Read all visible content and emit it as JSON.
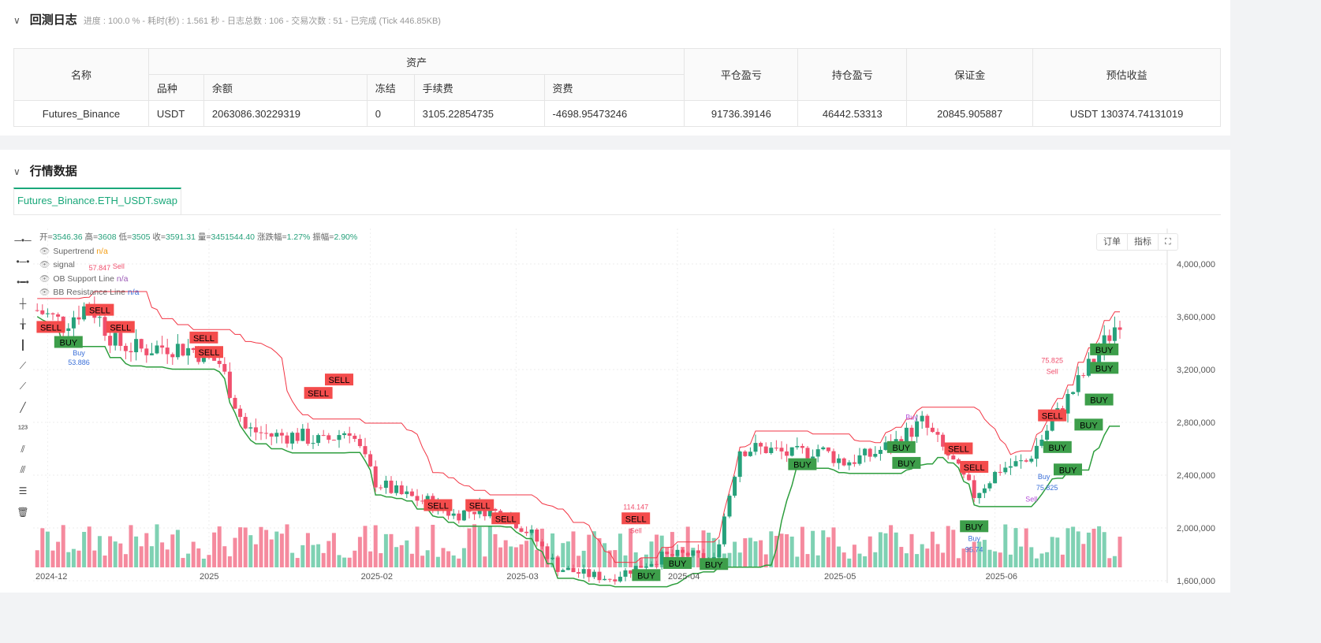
{
  "backtest_log": {
    "title": "回测日志",
    "status": "进度 : 100.0 % - 耗时(秒) : 1.561 秒 - 日志总数 : 106 - 交易次数 : 51 - 已完成 (Tick 446.85KB)"
  },
  "assets_table": {
    "headers": {
      "name": "名称",
      "assets": "资产",
      "close_pnl": "平仓盈亏",
      "position_pnl": "持仓盈亏",
      "margin": "保证金",
      "est_profit": "预估收益"
    },
    "sub_headers": [
      "品种",
      "余额",
      "冻结",
      "手续费",
      "资费"
    ],
    "row": {
      "name": "Futures_Binance",
      "currency": "USDT",
      "balance": "2063086.30229319",
      "frozen": "0",
      "fee": "3105.22854735",
      "funding": "-4698.95473246",
      "close_pnl": "91736.39146",
      "position_pnl": "46442.53313",
      "margin": "20845.905887",
      "est_profit": "USDT 130374.74131019"
    }
  },
  "market": {
    "title": "行情数据",
    "tab": "Futures_Binance.ETH_USDT.swap",
    "ohlc": {
      "open_label": "开=",
      "open": "3546.36",
      "high_label": "高=",
      "high": "3608",
      "low_label": "低=",
      "low": "3505",
      "close_label": "收=",
      "close": "3591.31",
      "vol_label": "量=",
      "vol": "3451544.40",
      "chg_label": "涨跌幅=",
      "chg": "1.27%",
      "amp_label": "振幅=",
      "amp": "2.90%"
    },
    "indicators": [
      {
        "name": "Supertrend",
        "value": "n/a",
        "color": "#f39c12"
      },
      {
        "name": "signal",
        "value": "",
        "color": "#999"
      },
      {
        "name": "OB Support Line",
        "value": "n/a",
        "color": "#9b59b6"
      },
      {
        "name": "BB Resistance Line",
        "value": "n/a",
        "color": "#3a6fd8"
      }
    ],
    "buttons": {
      "orders": "订单",
      "indicators": "指标"
    }
  },
  "chart_data": {
    "type": "candlestick",
    "y_ticks": [
      "4,000,000",
      "3,600,000",
      "3,200,000",
      "2,800,000",
      "2,400,000",
      "2,000,000",
      "1,600,000"
    ],
    "y_tick_values": [
      4000,
      3600,
      3200,
      2800,
      2400,
      2000,
      1600
    ],
    "x_ticks": [
      "2024-12",
      "2025",
      "2025-02",
      "2025-03",
      "2025-04",
      "2025-05",
      "2025-06"
    ],
    "close_path": [
      [
        "2024-11-29",
        3650
      ],
      [
        "2024-12-04",
        3550
      ],
      [
        "2024-12-09",
        3700
      ],
      [
        "2024-12-14",
        3400
      ],
      [
        "2024-12-19",
        3350
      ],
      [
        "2024-12-24",
        3380
      ],
      [
        "2024-12-29",
        3350
      ],
      [
        "2025-01-03",
        3250
      ],
      [
        "2025-01-08",
        2750
      ],
      [
        "2025-01-13",
        2700
      ],
      [
        "2025-01-18",
        2700
      ],
      [
        "2025-01-23",
        2650
      ],
      [
        "2025-01-28",
        2750
      ],
      [
        "2025-02-02",
        2350
      ],
      [
        "2025-02-07",
        2250
      ],
      [
        "2025-02-12",
        2200
      ],
      [
        "2025-02-17",
        2100
      ],
      [
        "2025-02-22",
        2150
      ],
      [
        "2025-02-27",
        2100
      ],
      [
        "2025-03-04",
        1950
      ],
      [
        "2025-03-09",
        1700
      ],
      [
        "2025-03-14",
        1650
      ],
      [
        "2025-03-19",
        1620
      ],
      [
        "2025-03-24",
        1700
      ],
      [
        "2025-03-29",
        1780
      ],
      [
        "2025-04-03",
        1800
      ],
      [
        "2025-04-08",
        1750
      ],
      [
        "2025-04-13",
        2600
      ],
      [
        "2025-04-18",
        2600
      ],
      [
        "2025-04-23",
        2550
      ],
      [
        "2025-04-28",
        2600
      ],
      [
        "2025-05-03",
        2500
      ],
      [
        "2025-05-08",
        2550
      ],
      [
        "2025-05-13",
        2650
      ],
      [
        "2025-05-18",
        2800
      ],
      [
        "2025-05-23",
        2550
      ],
      [
        "2025-05-28",
        2250
      ],
      [
        "2025-06-02",
        2450
      ],
      [
        "2025-06-07",
        2500
      ],
      [
        "2025-06-12",
        2800
      ],
      [
        "2025-06-17",
        3100
      ],
      [
        "2025-06-22",
        3400
      ],
      [
        "2025-06-25",
        3590
      ]
    ],
    "signals": [
      {
        "date": "2024-12-01",
        "price": 3520,
        "text": "SELL",
        "type": "sell"
      },
      {
        "date": "2024-12-05",
        "price": 3430,
        "text": "BUY",
        "type": "buy"
      },
      {
        "date": "2024-12-11",
        "price": 3650,
        "text": "SELL",
        "type": "sell"
      },
      {
        "date": "2024-12-15",
        "price": 3520,
        "text": "SELL",
        "type": "sell"
      },
      {
        "date": "2024-12-31",
        "price": 3440,
        "text": "SELL",
        "type": "sell"
      },
      {
        "date": "2025-01-01",
        "price": 3330,
        "text": "SELL",
        "type": "sell"
      },
      {
        "date": "2025-01-22",
        "price": 3020,
        "text": "SELL",
        "type": "sell"
      },
      {
        "date": "2025-01-26",
        "price": 3050,
        "text": "SELL",
        "type": "sell"
      },
      {
        "date": "2025-02-14",
        "price": 2170,
        "text": "SELL",
        "type": "sell"
      },
      {
        "date": "2025-02-22",
        "price": 2170,
        "text": "SELL",
        "type": "sell"
      },
      {
        "date": "2025-02-27",
        "price": 2070,
        "text": "SELL",
        "type": "sell"
      },
      {
        "date": "2025-03-24",
        "price": 2070,
        "text": "SELL",
        "type": "sell"
      },
      {
        "date": "2025-03-26",
        "price": 1640,
        "text": "BUY",
        "type": "buy"
      },
      {
        "date": "2025-04-01",
        "price": 1660,
        "text": "BUY",
        "type": "buy"
      },
      {
        "date": "2025-04-08",
        "price": 1700,
        "text": "BUY",
        "type": "buy"
      },
      {
        "date": "2025-04-25",
        "price": 2480,
        "text": "BUY",
        "type": "buy"
      },
      {
        "date": "2025-05-14",
        "price": 2610,
        "text": "BUY",
        "type": "buy"
      },
      {
        "date": "2025-05-15",
        "price": 2490,
        "text": "BUY",
        "type": "buy"
      },
      {
        "date": "2025-05-25",
        "price": 2600,
        "text": "SELL",
        "type": "sell"
      },
      {
        "date": "2025-05-28",
        "price": 2460,
        "text": "SELL",
        "type": "sell"
      },
      {
        "date": "2025-05-28",
        "price": 2010,
        "text": "BUY",
        "type": "buy"
      },
      {
        "date": "2025-06-12",
        "price": 2850,
        "text": "SELL",
        "type": "sell"
      },
      {
        "date": "2025-06-13",
        "price": 2610,
        "text": "BUY",
        "type": "buy"
      },
      {
        "date": "2025-06-15",
        "price": 2440,
        "text": "BUY",
        "type": "buy"
      },
      {
        "date": "2025-06-19",
        "price": 2780,
        "text": "BUY",
        "type": "buy"
      },
      {
        "date": "2025-06-21",
        "price": 2970,
        "text": "BUY",
        "type": "buy"
      },
      {
        "date": "2025-06-22",
        "price": 3210,
        "text": "BUY",
        "type": "buy"
      },
      {
        "date": "2025-06-22",
        "price": 3350,
        "text": "BUY",
        "type": "buy"
      }
    ],
    "trade_labels": [
      {
        "date": "2024-12-11",
        "price": 3880,
        "text": "57.847",
        "type": "sell"
      },
      {
        "date": "2024-12-11",
        "price": 3820,
        "text": "Sell",
        "type": "sell"
      },
      {
        "date": "2024-12-07",
        "price": 3330,
        "text": "Buy",
        "type": "buy"
      },
      {
        "date": "2024-12-07",
        "price": 3260,
        "text": "53.886",
        "type": "buy"
      },
      {
        "date": "2025-03-24",
        "price": 2140,
        "text": "114.147",
        "type": "sell"
      },
      {
        "date": "2025-03-24",
        "price": 2080,
        "text": "Sell",
        "type": "sell"
      },
      {
        "date": "2025-05-28",
        "price": 1950,
        "text": "Buy",
        "type": "buy"
      },
      {
        "date": "2025-05-28",
        "price": 1890,
        "text": "95.74",
        "type": "buy"
      },
      {
        "date": "2025-06-12",
        "price": 3250,
        "text": "75.825",
        "type": "sell"
      },
      {
        "date": "2025-06-12",
        "price": 3190,
        "text": "Sell",
        "type": "sell"
      },
      {
        "date": "2025-06-11",
        "price": 2370,
        "text": "Buy",
        "type": "buy"
      },
      {
        "date": "2025-06-11",
        "price": 2310,
        "text": "75.825",
        "type": "buy"
      },
      {
        "date": "2025-05-16",
        "price": 2820,
        "text": "Buy",
        "type": "purple"
      },
      {
        "date": "2025-06-08",
        "price": 2200,
        "text": "Sell",
        "type": "purple"
      }
    ],
    "colors": {
      "up": "#26a17b",
      "down": "#f0506e",
      "vol_up": "#7fd1b3",
      "vol_down": "#f58a9e",
      "resistance": "#f23645",
      "support": "#2e9e3e",
      "sell_label": "#f44c4c",
      "buy_label": "#3d9e4a"
    }
  }
}
